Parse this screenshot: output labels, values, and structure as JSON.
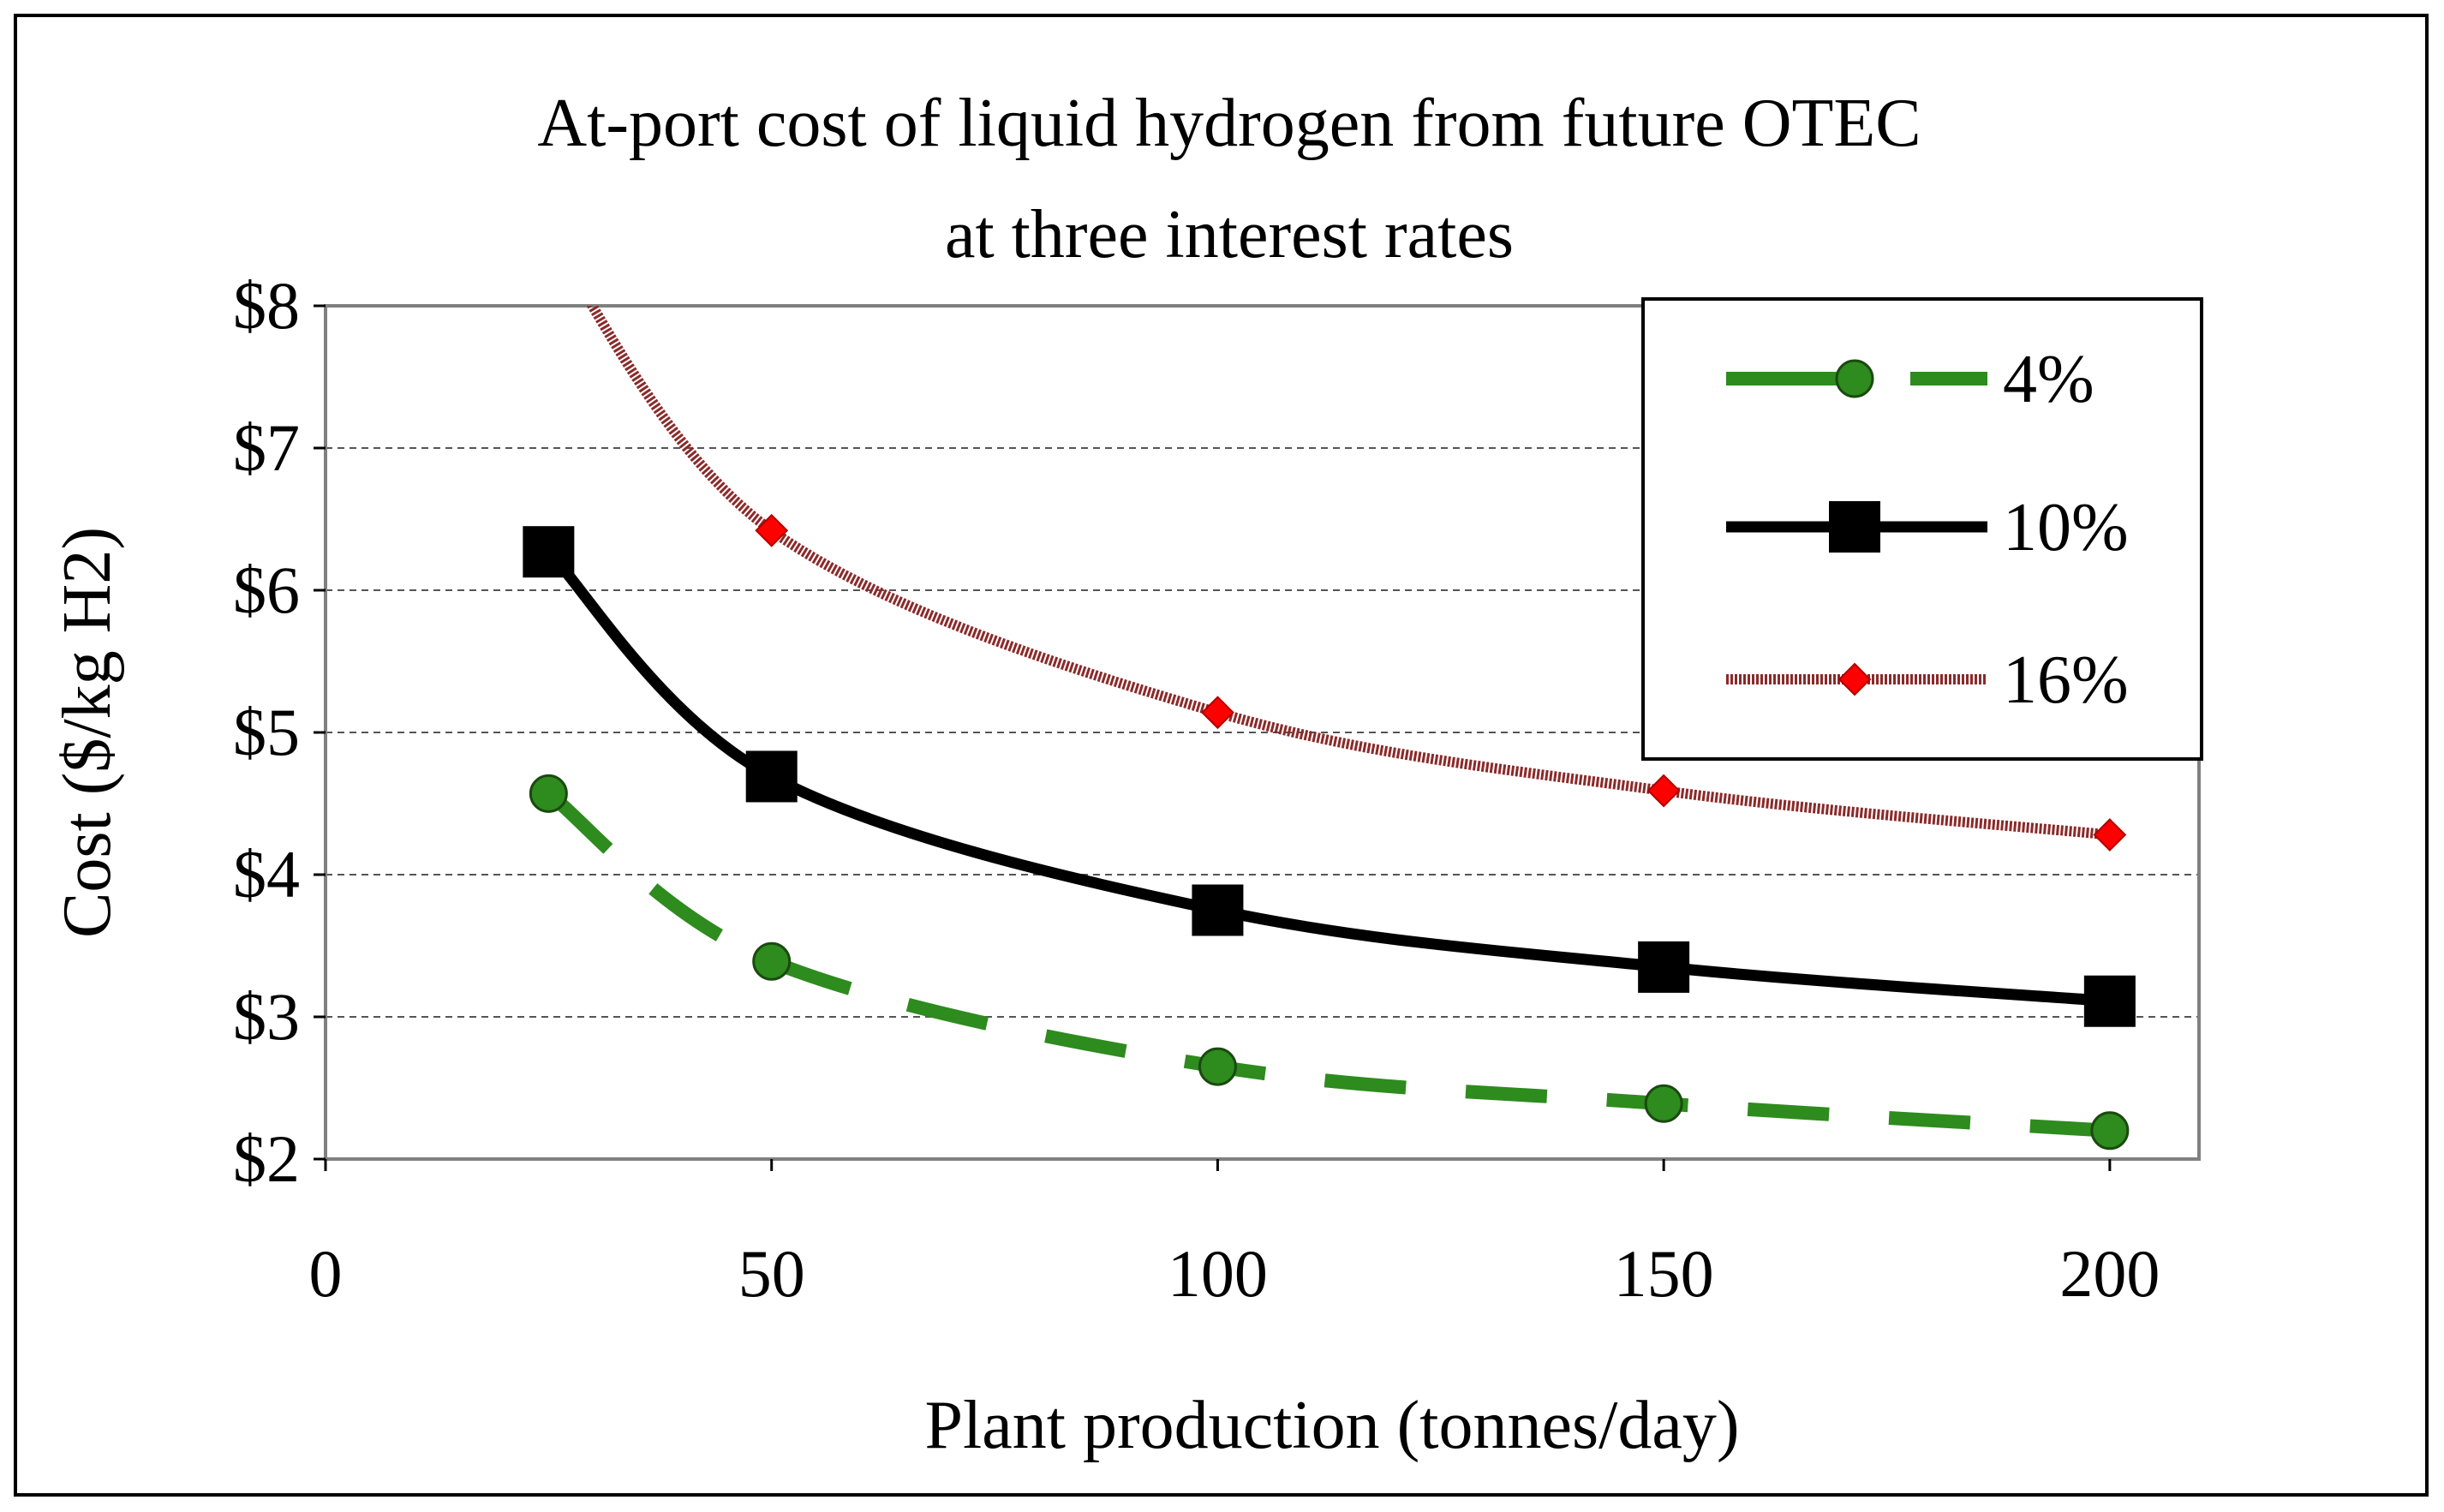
{
  "chart_data": {
    "type": "line",
    "title_lines": [
      "At-port cost of liquid hydrogen from future OTEC",
      "at three interest rates"
    ],
    "xlabel": "Plant production (tonnes/day)",
    "ylabel": "Cost ($/kg H2)",
    "xlim": [
      0,
      210
    ],
    "ylim": [
      2,
      8
    ],
    "x_ticks": [
      0,
      50,
      100,
      150,
      200
    ],
    "x_tick_labels": [
      "0",
      "50",
      "100",
      "150",
      "200"
    ],
    "y_ticks": [
      2,
      3,
      4,
      5,
      6,
      7,
      8
    ],
    "y_tick_labels": [
      "$2",
      "$3",
      "$4",
      "$5",
      "$6",
      "$7",
      "$8"
    ],
    "grid": "horizontal dashed",
    "legend_position": "top-right",
    "series": [
      {
        "name": "4%",
        "color": "#2e8b1e",
        "marker": "circle",
        "line_style": "dashed",
        "x": [
          25,
          50,
          100,
          150,
          200
        ],
        "y": [
          4.57,
          3.39,
          2.65,
          2.39,
          2.2
        ]
      },
      {
        "name": "10%",
        "color": "#000000",
        "marker": "square",
        "line_style": "solid",
        "x": [
          25,
          50,
          100,
          150,
          200
        ],
        "y": [
          6.27,
          4.69,
          3.75,
          3.35,
          3.11
        ]
      },
      {
        "name": "16%",
        "color": "#8b2a2a",
        "marker": "diamond",
        "marker_color": "#ff0000",
        "line_style": "textured",
        "x": [
          25,
          50,
          100,
          150,
          200
        ],
        "y": [
          8.5,
          6.42,
          5.14,
          4.59,
          4.28
        ]
      }
    ]
  }
}
